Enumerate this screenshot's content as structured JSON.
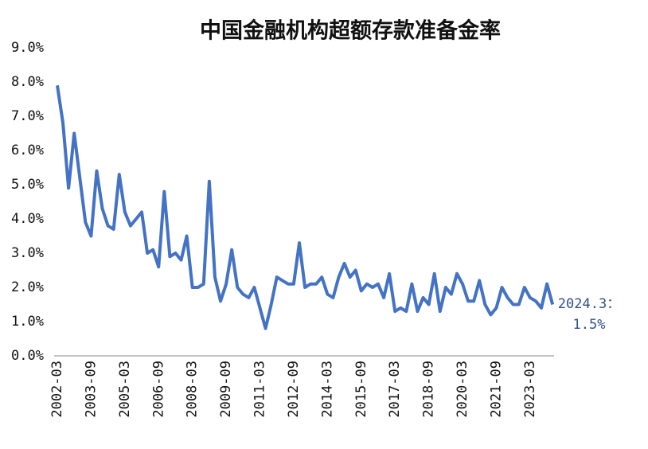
{
  "chart_data": {
    "type": "line",
    "title": "中国金融机构超额存款准备金率",
    "categories": [
      "2002-03",
      null,
      null,
      null,
      null,
      null,
      "2003-09",
      null,
      null,
      null,
      null,
      null,
      "2005-03",
      null,
      null,
      null,
      null,
      null,
      "2006-09",
      null,
      null,
      null,
      null,
      null,
      "2008-03",
      null,
      null,
      null,
      null,
      null,
      "2009-09",
      null,
      null,
      null,
      null,
      null,
      "2011-03",
      null,
      null,
      null,
      null,
      null,
      "2012-09",
      null,
      null,
      null,
      null,
      null,
      "2014-03",
      null,
      null,
      null,
      null,
      null,
      "2015-09",
      null,
      null,
      null,
      null,
      null,
      "2017-03",
      null,
      null,
      null,
      null,
      null,
      "2018-09",
      null,
      null,
      null,
      null,
      null,
      "2020-03",
      null,
      null,
      null,
      null,
      null,
      "2021-09",
      null,
      null,
      null,
      null,
      null,
      "2023-03",
      null,
      null,
      null,
      null
    ],
    "values": [
      7.9,
      6.8,
      4.9,
      6.5,
      5.2,
      3.9,
      3.5,
      5.4,
      4.3,
      3.8,
      3.7,
      5.3,
      4.2,
      3.8,
      4.0,
      4.2,
      3.0,
      3.1,
      2.6,
      4.8,
      2.9,
      3.0,
      2.8,
      3.5,
      2.0,
      2.0,
      2.1,
      5.1,
      2.3,
      1.6,
      2.1,
      3.1,
      2.0,
      1.8,
      1.7,
      2.0,
      1.4,
      0.8,
      1.5,
      2.3,
      2.2,
      2.1,
      2.1,
      3.3,
      2.0,
      2.1,
      2.1,
      2.3,
      1.8,
      1.7,
      2.3,
      2.7,
      2.3,
      2.5,
      1.9,
      2.1,
      2.0,
      2.1,
      1.7,
      2.4,
      1.3,
      1.4,
      1.3,
      2.1,
      1.3,
      1.7,
      1.5,
      2.4,
      1.3,
      2.0,
      1.8,
      2.4,
      2.1,
      1.6,
      1.6,
      2.2,
      1.5,
      1.2,
      1.4,
      2.0,
      1.7,
      1.5,
      1.5,
      2.0,
      1.7,
      1.6,
      1.4,
      2.1,
      1.5
    ],
    "color": "#4472c4",
    "ylim": [
      0,
      9
    ],
    "yticks": [
      {
        "value": 0,
        "label": "0.0%"
      },
      {
        "value": 1,
        "label": "1.0%"
      },
      {
        "value": 2,
        "label": "2.0%"
      },
      {
        "value": 3,
        "label": "3.0%"
      },
      {
        "value": 4,
        "label": "4.0%"
      },
      {
        "value": 5,
        "label": "5.0%"
      },
      {
        "value": 6,
        "label": "6.0%"
      },
      {
        "value": 7,
        "label": "7.0%"
      },
      {
        "value": 8,
        "label": "8.0%"
      },
      {
        "value": 9,
        "label": "9.0%"
      }
    ],
    "grid": false,
    "annotation": [
      "2024.3：",
      "1.5%"
    ]
  }
}
